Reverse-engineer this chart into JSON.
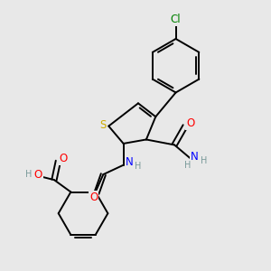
{
  "bg_color": "#e8e8e8",
  "atom_colors": {
    "C": "#000000",
    "H": "#7a9a9a",
    "N": "#0000ff",
    "O": "#ff0000",
    "S": "#ccaa00",
    "Cl": "#008000"
  },
  "bond_color": "#000000",
  "bond_width": 1.4,
  "font_size_atoms": 8.5,
  "font_size_small": 7.0
}
